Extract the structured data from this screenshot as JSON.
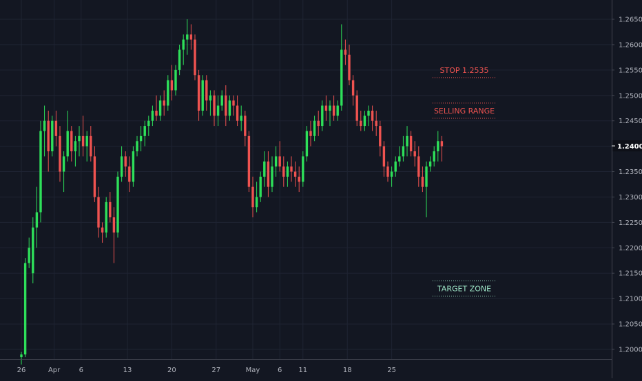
{
  "chart_data": {
    "type": "candlestick",
    "price_axis": {
      "ticks": [
        "1.20000",
        "1.20500",
        "1.21000",
        "1.21500",
        "1.22000",
        "1.22500",
        "1.23000",
        "1.23500",
        "1.24000",
        "1.24500",
        "1.25000",
        "1.25500",
        "1.26000",
        "1.26500"
      ],
      "ylim": [
        1.1975,
        1.2685
      ]
    },
    "time_axis": {
      "ticks": [
        {
          "label": "26",
          "bar": 0
        },
        {
          "label": "Apr",
          "bar": 8.5
        },
        {
          "label": "6",
          "bar": 15.5
        },
        {
          "label": "13",
          "bar": 27.5
        },
        {
          "label": "20",
          "bar": 39
        },
        {
          "label": "27",
          "bar": 50.5
        },
        {
          "label": "May",
          "bar": 60
        },
        {
          "label": "6",
          "bar": 67
        },
        {
          "label": "11",
          "bar": 73
        },
        {
          "label": "18",
          "bar": 84.5
        },
        {
          "label": "25",
          "bar": 96
        }
      ],
      "bar_count": 110
    },
    "current_price": "1.24007",
    "candles": [
      [
        1.1985,
        1.1995,
        1.197,
        1.199
      ],
      [
        1.199,
        1.218,
        1.1985,
        1.217
      ],
      [
        1.217,
        1.222,
        1.216,
        1.22
      ],
      [
        1.215,
        1.226,
        1.213,
        1.224
      ],
      [
        1.224,
        1.232,
        1.22,
        1.227
      ],
      [
        1.227,
        1.245,
        1.225,
        1.243
      ],
      [
        1.243,
        1.248,
        1.238,
        1.245
      ],
      [
        1.245,
        1.247,
        1.235,
        1.239
      ],
      [
        1.239,
        1.246,
        1.238,
        1.245
      ],
      [
        1.245,
        1.247,
        1.24,
        1.242
      ],
      [
        1.242,
        1.244,
        1.233,
        1.235
      ],
      [
        1.235,
        1.239,
        1.231,
        1.238
      ],
      [
        1.238,
        1.247,
        1.237,
        1.243
      ],
      [
        1.243,
        1.244,
        1.237,
        1.239
      ],
      [
        1.239,
        1.242,
        1.236,
        1.241
      ],
      [
        1.241,
        1.244,
        1.238,
        1.242
      ],
      [
        1.242,
        1.246,
        1.238,
        1.24
      ],
      [
        1.24,
        1.243,
        1.237,
        1.242
      ],
      [
        1.242,
        1.244,
        1.237,
        1.238
      ],
      [
        1.238,
        1.24,
        1.229,
        1.23
      ],
      [
        1.23,
        1.232,
        1.222,
        1.224
      ],
      [
        1.224,
        1.225,
        1.221,
        1.223
      ],
      [
        1.223,
        1.23,
        1.222,
        1.229
      ],
      [
        1.229,
        1.231,
        1.225,
        1.226
      ],
      [
        1.226,
        1.228,
        1.217,
        1.223
      ],
      [
        1.223,
        1.235,
        1.222,
        1.234
      ],
      [
        1.234,
        1.24,
        1.233,
        1.238
      ],
      [
        1.238,
        1.239,
        1.234,
        1.236
      ],
      [
        1.236,
        1.238,
        1.231,
        1.233
      ],
      [
        1.233,
        1.24,
        1.232,
        1.239
      ],
      [
        1.239,
        1.242,
        1.238,
        1.241
      ],
      [
        1.241,
        1.244,
        1.239,
        1.242
      ],
      [
        1.242,
        1.245,
        1.24,
        1.244
      ],
      [
        1.244,
        1.246,
        1.242,
        1.245
      ],
      [
        1.245,
        1.248,
        1.244,
        1.247
      ],
      [
        1.247,
        1.25,
        1.245,
        1.246
      ],
      [
        1.246,
        1.25,
        1.245,
        1.249
      ],
      [
        1.249,
        1.251,
        1.246,
        1.248
      ],
      [
        1.248,
        1.254,
        1.247,
        1.253
      ],
      [
        1.253,
        1.256,
        1.249,
        1.251
      ],
      [
        1.251,
        1.256,
        1.25,
        1.255
      ],
      [
        1.255,
        1.26,
        1.254,
        1.259
      ],
      [
        1.259,
        1.262,
        1.256,
        1.261
      ],
      [
        1.261,
        1.265,
        1.258,
        1.262
      ],
      [
        1.262,
        1.264,
        1.259,
        1.261
      ],
      [
        1.261,
        1.262,
        1.253,
        1.254
      ],
      [
        1.254,
        1.255,
        1.245,
        1.247
      ],
      [
        1.247,
        1.254,
        1.246,
        1.253
      ],
      [
        1.253,
        1.254,
        1.247,
        1.249
      ],
      [
        1.249,
        1.251,
        1.246,
        1.25
      ],
      [
        1.25,
        1.251,
        1.244,
        1.246
      ],
      [
        1.246,
        1.25,
        1.244,
        1.248
      ],
      [
        1.248,
        1.251,
        1.247,
        1.25
      ],
      [
        1.25,
        1.252,
        1.244,
        1.246
      ],
      [
        1.246,
        1.25,
        1.245,
        1.249
      ],
      [
        1.249,
        1.25,
        1.246,
        1.248
      ],
      [
        1.248,
        1.25,
        1.244,
        1.245
      ],
      [
        1.245,
        1.248,
        1.243,
        1.246
      ],
      [
        1.246,
        1.247,
        1.24,
        1.242
      ],
      [
        1.242,
        1.243,
        1.231,
        1.232
      ],
      [
        1.232,
        1.234,
        1.226,
        1.228
      ],
      [
        1.228,
        1.233,
        1.227,
        1.23
      ],
      [
        1.23,
        1.235,
        1.229,
        1.234
      ],
      [
        1.234,
        1.239,
        1.232,
        1.237
      ],
      [
        1.237,
        1.239,
        1.23,
        1.232
      ],
      [
        1.232,
        1.238,
        1.231,
        1.236
      ],
      [
        1.236,
        1.24,
        1.234,
        1.238
      ],
      [
        1.238,
        1.241,
        1.235,
        1.236
      ],
      [
        1.236,
        1.238,
        1.232,
        1.234
      ],
      [
        1.234,
        1.237,
        1.232,
        1.236
      ],
      [
        1.236,
        1.238,
        1.233,
        1.235
      ],
      [
        1.235,
        1.237,
        1.232,
        1.234
      ],
      [
        1.234,
        1.236,
        1.231,
        1.233
      ],
      [
        1.233,
        1.239,
        1.232,
        1.238
      ],
      [
        1.238,
        1.244,
        1.237,
        1.243
      ],
      [
        1.243,
        1.245,
        1.24,
        1.242
      ],
      [
        1.242,
        1.246,
        1.241,
        1.245
      ],
      [
        1.245,
        1.247,
        1.242,
        1.244
      ],
      [
        1.244,
        1.249,
        1.243,
        1.248
      ],
      [
        1.248,
        1.25,
        1.245,
        1.247
      ],
      [
        1.247,
        1.249,
        1.244,
        1.248
      ],
      [
        1.248,
        1.25,
        1.245,
        1.246
      ],
      [
        1.246,
        1.249,
        1.245,
        1.248
      ],
      [
        1.248,
        1.264,
        1.247,
        1.259
      ],
      [
        1.259,
        1.261,
        1.256,
        1.258
      ],
      [
        1.258,
        1.26,
        1.252,
        1.253
      ],
      [
        1.253,
        1.254,
        1.248,
        1.25
      ],
      [
        1.25,
        1.251,
        1.244,
        1.245
      ],
      [
        1.245,
        1.247,
        1.243,
        1.244
      ],
      [
        1.244,
        1.247,
        1.243,
        1.246
      ],
      [
        1.246,
        1.248,
        1.244,
        1.247
      ],
      [
        1.247,
        1.248,
        1.243,
        1.245
      ],
      [
        1.245,
        1.247,
        1.242,
        1.244
      ],
      [
        1.244,
        1.245,
        1.238,
        1.24
      ],
      [
        1.24,
        1.241,
        1.234,
        1.236
      ],
      [
        1.236,
        1.237,
        1.233,
        1.234
      ],
      [
        1.234,
        1.236,
        1.232,
        1.235
      ],
      [
        1.235,
        1.238,
        1.234,
        1.237
      ],
      [
        1.237,
        1.24,
        1.236,
        1.238
      ],
      [
        1.238,
        1.242,
        1.237,
        1.24
      ],
      [
        1.24,
        1.244,
        1.238,
        1.242
      ],
      [
        1.242,
        1.243,
        1.238,
        1.239
      ],
      [
        1.239,
        1.241,
        1.236,
        1.238
      ],
      [
        1.238,
        1.24,
        1.232,
        1.234
      ],
      [
        1.234,
        1.236,
        1.231,
        1.232
      ],
      [
        1.232,
        1.237,
        1.226,
        1.236
      ],
      [
        1.236,
        1.238,
        1.235,
        1.237
      ],
      [
        1.237,
        1.24,
        1.236,
        1.239
      ],
      [
        1.239,
        1.243,
        1.237,
        1.241
      ],
      [
        1.241,
        1.242,
        1.237,
        1.24
      ]
    ],
    "annotations": [
      {
        "text": "STOP 1.2535",
        "color": "#ef5350",
        "level": 1.2535
      },
      {
        "text": "SELLING RANGE",
        "color": "#ef5350",
        "range": [
          1.2455,
          1.2485
        ]
      },
      {
        "text": "TARGET ZONE",
        "color": "#9ee6c7",
        "range": [
          1.2105,
          1.2135
        ]
      }
    ],
    "colors": {
      "background": "#131722",
      "grid": "#1f2433",
      "up": "#26a69a",
      "up_candle": "#2ee05a",
      "down": "#ef5350",
      "axis_text": "#b2b5be",
      "price_label_bg": "#0e1018",
      "price_label_text": "#ffffff"
    }
  }
}
